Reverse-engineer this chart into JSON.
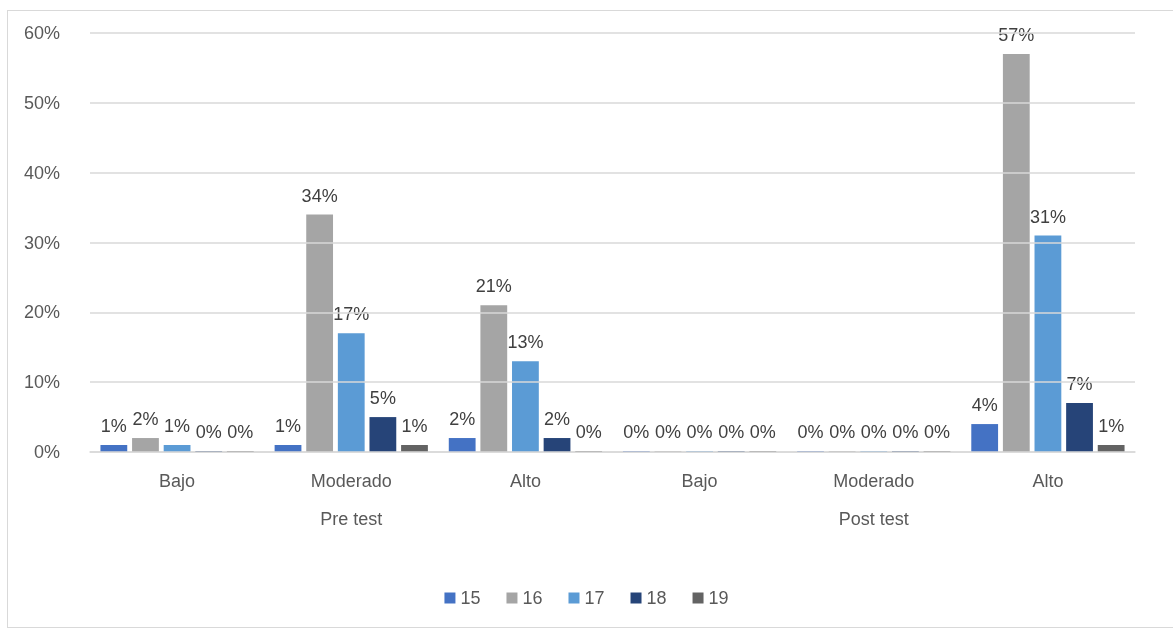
{
  "chart_data": {
    "type": "bar",
    "categories": [
      "Bajo",
      "Moderado",
      "Alto",
      "Bajo",
      "Moderado",
      "Alto"
    ],
    "annotations": [
      "Pre test",
      "Post test"
    ],
    "series": [
      {
        "name": "15",
        "color": "#4472c4",
        "values": [
          1,
          1,
          2,
          0,
          0,
          4
        ],
        "value_labels": [
          "1%",
          "1%",
          "2%",
          "0%",
          "0%",
          "4%"
        ]
      },
      {
        "name": "16",
        "color": "#a5a5a5",
        "values": [
          2,
          34,
          21,
          0,
          0,
          57
        ],
        "value_labels": [
          "2%",
          "34%",
          "21%",
          "0%",
          "0%",
          "57%"
        ]
      },
      {
        "name": "17",
        "color": "#5b9bd5",
        "values": [
          1,
          17,
          13,
          0,
          0,
          31
        ],
        "value_labels": [
          "1%",
          "17%",
          "13%",
          "0%",
          "0%",
          "31%"
        ]
      },
      {
        "name": "18",
        "color": "#264478",
        "values": [
          0,
          5,
          2,
          0,
          0,
          7
        ],
        "value_labels": [
          "0%",
          "5%",
          "2%",
          "0%",
          "0%",
          "7%"
        ]
      },
      {
        "name": "19",
        "color": "#636363",
        "values": [
          0,
          1,
          0,
          0,
          0,
          1
        ],
        "value_labels": [
          "0%",
          "1%",
          "0%",
          "0%",
          "0%",
          "1%"
        ]
      }
    ],
    "ylim": [
      0,
      60
    ],
    "yticks": [
      {
        "value": 0,
        "label": "0%"
      },
      {
        "value": 10,
        "label": "10%"
      },
      {
        "value": 20,
        "label": "20%"
      },
      {
        "value": 30,
        "label": "30%"
      },
      {
        "value": 40,
        "label": "40%"
      },
      {
        "value": 50,
        "label": "50%"
      },
      {
        "value": 60,
        "label": "60%"
      }
    ],
    "grid": "y",
    "legend": "bottom"
  }
}
